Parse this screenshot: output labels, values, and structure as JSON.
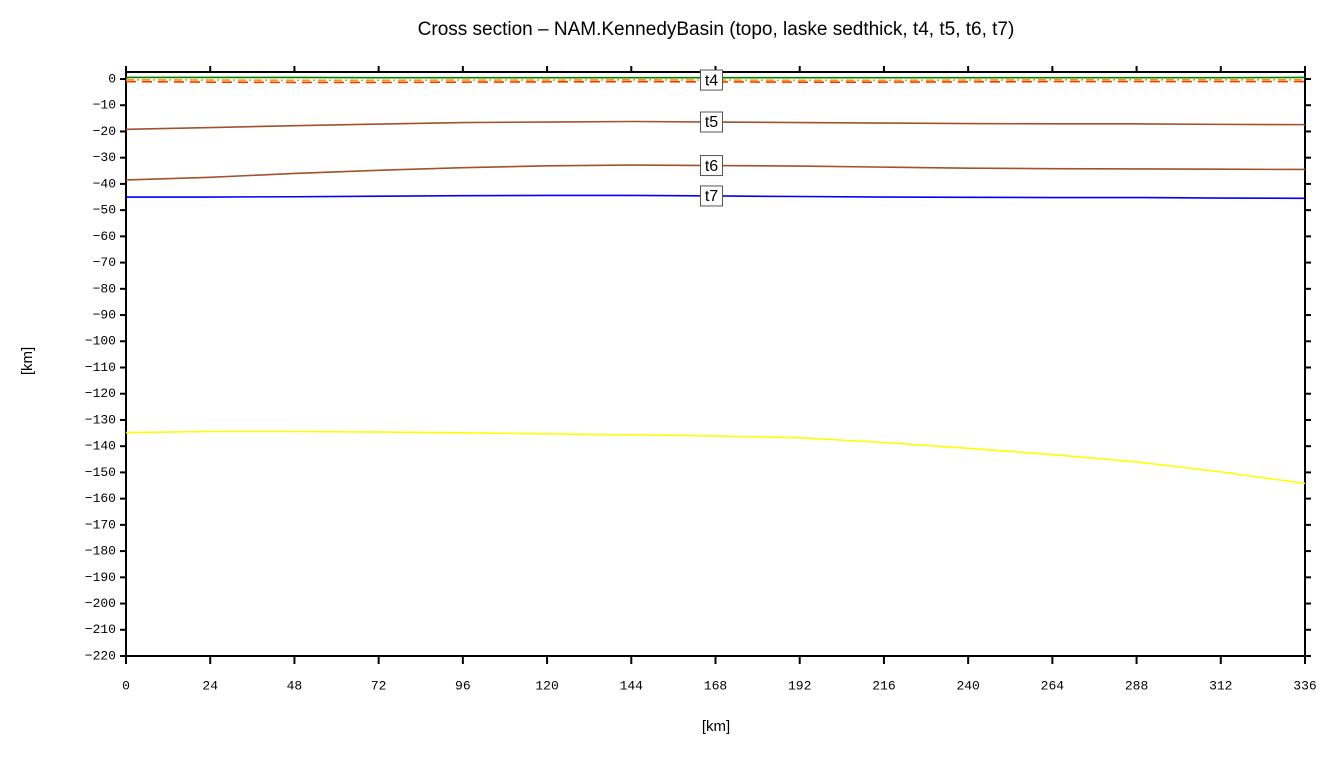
{
  "chart_data": {
    "type": "line",
    "title": "Cross section – NAM.KennedyBasin (topo, laske sedthick, t4, t5, t6, t7)",
    "xlabel": "[km]",
    "ylabel": "[km]",
    "x": [
      0,
      24,
      48,
      72,
      96,
      120,
      144,
      168,
      192,
      216,
      240,
      264,
      288,
      312,
      336
    ],
    "xlim": [
      0,
      336
    ],
    "xticks": [
      0,
      24,
      48,
      72,
      96,
      120,
      144,
      168,
      192,
      216,
      240,
      264,
      288,
      312,
      336
    ],
    "ylim": [
      -220,
      0
    ],
    "yticks": [
      0,
      {
        "value": -10,
        "label": "−10"
      },
      {
        "value": -20,
        "label": "−20"
      },
      {
        "value": -30,
        "label": "−30"
      },
      {
        "value": -40,
        "label": "−40"
      },
      {
        "value": -50,
        "label": "−50"
      },
      {
        "value": -60,
        "label": "−60"
      },
      {
        "value": -70,
        "label": "−70"
      },
      {
        "value": -80,
        "label": "−80"
      },
      {
        "value": -90,
        "label": "−90"
      },
      {
        "value": -100,
        "label": "−100"
      },
      {
        "value": -110,
        "label": "−110"
      },
      {
        "value": -120,
        "label": "−120"
      },
      {
        "value": -130,
        "label": "−130"
      },
      {
        "value": -140,
        "label": "−140"
      },
      {
        "value": -150,
        "label": "−150"
      },
      {
        "value": -160,
        "label": "−160"
      },
      {
        "value": -170,
        "label": "−170"
      },
      {
        "value": -180,
        "label": "−180"
      },
      {
        "value": -190,
        "label": "−190"
      },
      {
        "value": -200,
        "label": "−200"
      },
      {
        "value": -210,
        "label": "−210"
      },
      {
        "value": -220,
        "label": "−220"
      }
    ],
    "series": [
      {
        "color": "#008000",
        "dash": "none",
        "values": [
          0.6,
          0.6,
          0.6,
          0.5,
          0.5,
          0.5,
          0.5,
          0.5,
          0.5,
          0.5,
          0.5,
          0.5,
          0.5,
          0.5,
          0.6
        ]
      },
      {
        "color": "#ff3300",
        "dash": "10,6",
        "values": [
          -1.0,
          -1.2,
          -1.3,
          -1.3,
          -1.2,
          -1.1,
          -1.0,
          -1.1,
          -1.2,
          -1.2,
          -1.1,
          -1.0,
          -1.0,
          -1.0,
          -1.0
        ]
      },
      {
        "name": "t4",
        "color": "#ff9900",
        "dash": "8,3,2,3",
        "values": [
          -0.3,
          -0.4,
          -0.5,
          -0.5,
          -0.4,
          -0.4,
          -0.3,
          -0.4,
          -0.5,
          -0.5,
          -0.4,
          -0.3,
          -0.3,
          -0.3,
          -0.3
        ]
      },
      {
        "name": "t5",
        "color": "#a0522d",
        "dash": "none",
        "values": [
          -19.2,
          -18.5,
          -17.8,
          -17.2,
          -16.6,
          -16.4,
          -16.2,
          -16.4,
          -16.6,
          -16.8,
          -17.0,
          -17.1,
          -17.1,
          -17.3,
          -17.4
        ]
      },
      {
        "name": "t6",
        "color": "#a0522d",
        "dash": "none",
        "values": [
          -38.5,
          -37.5,
          -36.0,
          -34.8,
          -33.8,
          -33.1,
          -32.8,
          -33.0,
          -33.2,
          -33.6,
          -34.0,
          -34.2,
          -34.3,
          -34.4,
          -34.5
        ]
      },
      {
        "name": "t7",
        "color": "#0000ff",
        "dash": "none",
        "values": [
          -45.0,
          -45.0,
          -44.9,
          -44.7,
          -44.5,
          -44.4,
          -44.4,
          -44.6,
          -44.8,
          -45.0,
          -45.1,
          -45.2,
          -45.2,
          -45.4,
          -45.5
        ]
      },
      {
        "color": "#ffff00",
        "dash": "none",
        "values": [
          -134.8,
          -134.4,
          -134.4,
          -134.6,
          -134.9,
          -135.3,
          -135.7,
          -136.1,
          -136.8,
          -138.6,
          -140.8,
          -143.2,
          -146.0,
          -149.8,
          -154.2
        ]
      }
    ]
  }
}
